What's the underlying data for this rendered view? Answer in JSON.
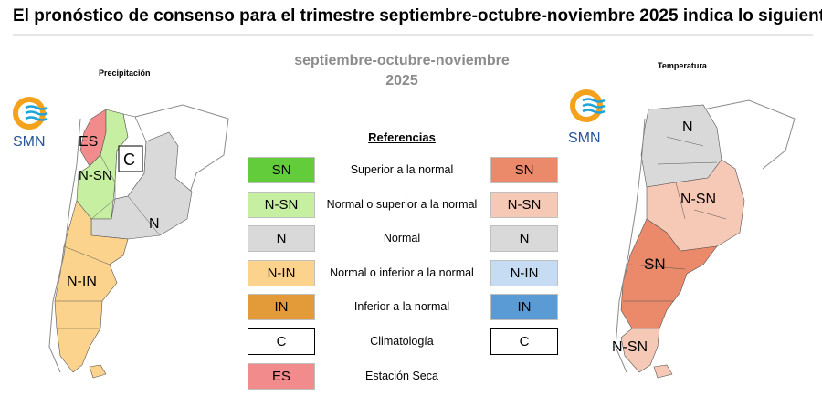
{
  "headline": "El pronóstico de consenso para el trimestre septiembre-octubre-noviembre 2025 indica lo siguiente:",
  "period": {
    "line1": "septiembre-octubre-noviembre",
    "line2": "2025"
  },
  "left_map": {
    "title": "Precipitación",
    "logo_text": "SMN",
    "labels": [
      "ES",
      "N-SN",
      "C",
      "N",
      "N-IN"
    ]
  },
  "right_map": {
    "title": "Temperatura",
    "logo_text": "SMN",
    "labels": [
      "N",
      "N-SN",
      "SN",
      "N-SN"
    ]
  },
  "legend": {
    "title": "Referencias",
    "rows": [
      {
        "left_code": "SN",
        "left_color": "#62cc3b",
        "desc": "Superior a la normal",
        "right_code": "SN",
        "right_color": "#ea8a6b"
      },
      {
        "left_code": "N-SN",
        "left_color": "#c6efa1",
        "desc": "Normal o superior a la normal",
        "right_code": "N-SN",
        "right_color": "#f6c8b6"
      },
      {
        "left_code": "N",
        "left_color": "#d9d9d9",
        "desc": "Normal",
        "right_code": "N",
        "right_color": "#d9d9d9"
      },
      {
        "left_code": "N-IN",
        "left_color": "#fbd38d",
        "desc": "Normal o inferior a la normal",
        "right_code": "N-IN",
        "right_color": "#c5dcf2"
      },
      {
        "left_code": "IN",
        "left_color": "#e39a39",
        "desc": "Inferior a la normal",
        "right_code": "IN",
        "right_color": "#5b9bd5"
      },
      {
        "left_code": "C",
        "left_color": "#ffffff",
        "desc": "Climatología",
        "right_code": "C",
        "right_color": "#ffffff"
      },
      {
        "left_code": "ES",
        "left_color": "#f28b8b",
        "desc": "Estación Seca",
        "right_code": "",
        "right_color": ""
      }
    ]
  },
  "colors": {
    "logo_orange": "#f4a21b",
    "logo_blue": "#1fa3dc",
    "logo_text": "#27539b"
  }
}
